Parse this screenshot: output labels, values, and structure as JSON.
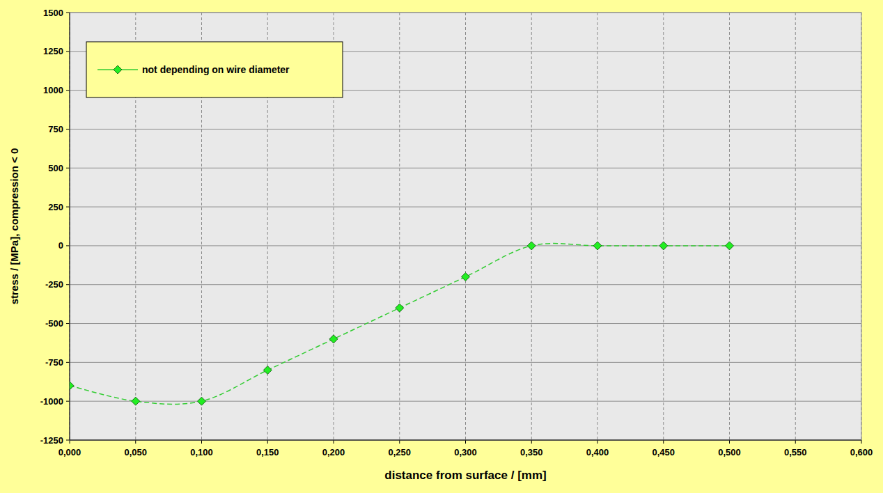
{
  "chart_data": {
    "type": "line",
    "x_label": "distance from surface / [mm]",
    "y_label": "stress / [MPa], compression < 0",
    "x": [
      0,
      0.05,
      0.1,
      0.15,
      0.2,
      0.25,
      0.3,
      0.35,
      0.4,
      0.45,
      0.5
    ],
    "series": [
      {
        "name": "not depending on wire diameter",
        "color": "#33cc33",
        "marker": "diamond",
        "line_style": "dashed",
        "values": [
          -900,
          -1000,
          -1000,
          -800,
          -600,
          -400,
          -200,
          0,
          0,
          0,
          0
        ]
      }
    ],
    "xlim": [
      0,
      0.6
    ],
    "ylim": [
      -1250,
      1500
    ],
    "xticks": [
      {
        "value": 0,
        "label": "0,000"
      },
      {
        "value": 0.05,
        "label": "0,050"
      },
      {
        "value": 0.1,
        "label": "0,100"
      },
      {
        "value": 0.15,
        "label": "0,150"
      },
      {
        "value": 0.2,
        "label": "0,200"
      },
      {
        "value": 0.25,
        "label": "0,250"
      },
      {
        "value": 0.3,
        "label": "0,300"
      },
      {
        "value": 0.35,
        "label": "0,350"
      },
      {
        "value": 0.4,
        "label": "0,400"
      },
      {
        "value": 0.45,
        "label": "0,450"
      },
      {
        "value": 0.5,
        "label": "0,500"
      },
      {
        "value": 0.55,
        "label": "0,550"
      },
      {
        "value": 0.6,
        "label": "0,600"
      }
    ],
    "yticks": [
      -1250,
      -1000,
      -750,
      -500,
      -250,
      0,
      250,
      500,
      750,
      1000,
      1250,
      1500
    ],
    "grid": true,
    "legend": "upper left"
  }
}
